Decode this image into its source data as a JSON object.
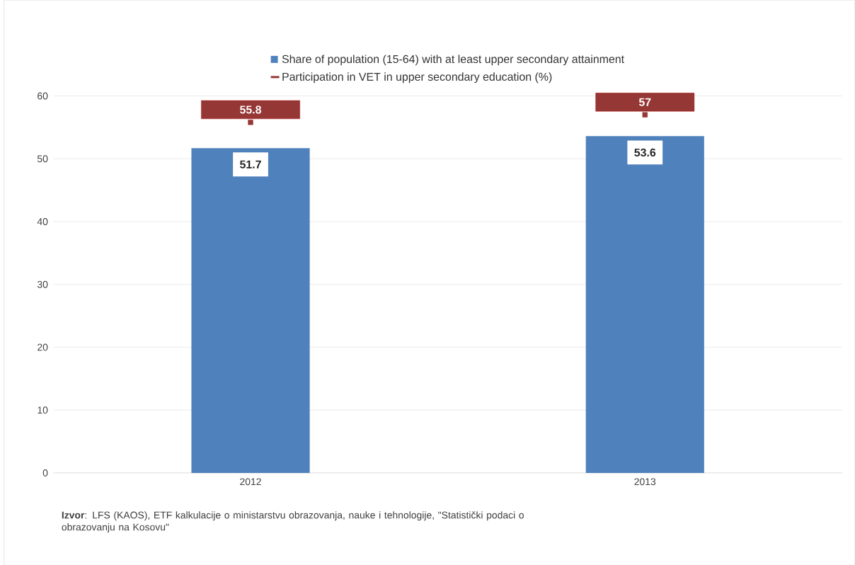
{
  "chart_data": {
    "type": "bar",
    "categories": [
      "2012",
      "2013"
    ],
    "series": [
      {
        "name": "Share of population (15-64) with at least upper secondary attainment",
        "color": "#4f81bd",
        "values": [
          51.7,
          53.6
        ]
      },
      {
        "name": "Participation in VET in upper secondary education (%)",
        "color": "#953735",
        "type": "scatter",
        "values": [
          55.8,
          57
        ]
      }
    ],
    "ylim": [
      0,
      60
    ],
    "yticks": [
      0,
      10,
      20,
      30,
      40,
      50,
      60
    ],
    "grid": "y",
    "marker": "square",
    "legend": "top",
    "data_labels": true,
    "annotations": [
      "**Izvor**: LFS (KAOS), ETF kalkulacije o ministarstvu obrazovanja, nauke i tehnologije, \"Statistički podaci o obrazovanju na Kosovu\""
    ]
  }
}
